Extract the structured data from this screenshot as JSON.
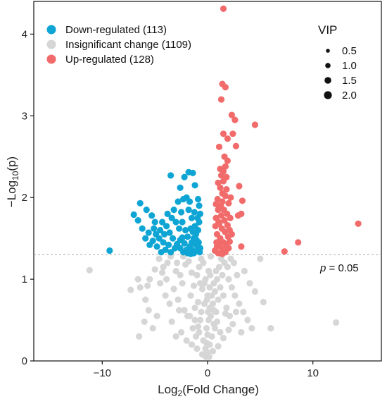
{
  "chart_data": {
    "type": "scatter",
    "xlabel": {
      "pre": "Log",
      "sub": "2",
      "post": "(Fold Change)"
    },
    "ylabel": {
      "pre": "−Log",
      "sub": "10",
      "post": "(p)"
    },
    "xlim": [
      -16.5,
      16.5
    ],
    "ylim": [
      0,
      4.4
    ],
    "xticks": [
      -10,
      0,
      10
    ],
    "yticks": [
      0,
      1,
      2,
      3,
      4
    ],
    "threshold": {
      "y": 1.301,
      "label_italic": "p",
      "label_rest": " = 0.05"
    },
    "legend": {
      "position": "top-left",
      "entries": [
        {
          "label": "Down-regulated (113)",
          "color": "#0ea5d4"
        },
        {
          "label": "Insignificant change (1109)",
          "color": "#d6d6d6"
        },
        {
          "label": "Up-regulated (128)",
          "color": "#f26b6b"
        }
      ]
    },
    "size_legend": {
      "title": "VIP",
      "labels": [
        "0.5",
        "1.0",
        "1.5",
        "2.0"
      ],
      "values": [
        0.5,
        1.0,
        1.5,
        2.0
      ]
    },
    "series": [
      {
        "name": "Down-regulated (113)",
        "color": "#0ea5d4",
        "points": [
          [
            -9.3,
            1.35
          ],
          [
            -6.4,
            1.93
          ],
          [
            -7.0,
            1.79
          ],
          [
            -6.6,
            1.72
          ],
          [
            -5.8,
            1.85
          ],
          [
            -5.3,
            1.78
          ],
          [
            -6.2,
            1.62
          ],
          [
            -5.6,
            1.57
          ],
          [
            -5.9,
            1.5
          ],
          [
            -5.0,
            1.7
          ],
          [
            -4.5,
            1.6
          ],
          [
            -4.2,
            1.45
          ],
          [
            -4.8,
            1.4
          ],
          [
            -3.5,
            2.27
          ],
          [
            -2.6,
            2.12
          ],
          [
            -1.8,
            2.31
          ],
          [
            -1.4,
            2.3
          ],
          [
            -2.2,
            2.25
          ],
          [
            -2.0,
            2.0
          ],
          [
            -1.2,
            2.15
          ],
          [
            -0.9,
            1.98
          ],
          [
            -3.2,
            1.85
          ],
          [
            -2.5,
            1.82
          ],
          [
            -2.8,
            1.95
          ],
          [
            -3.9,
            1.65
          ],
          [
            -3.6,
            1.57
          ],
          [
            -3.3,
            1.5
          ],
          [
            -2.9,
            1.43
          ],
          [
            -2.6,
            1.38
          ],
          [
            -2.3,
            1.33
          ],
          [
            -2.0,
            1.36
          ],
          [
            -1.7,
            1.4
          ],
          [
            -1.5,
            1.45
          ],
          [
            -1.3,
            1.5
          ],
          [
            -1.1,
            1.55
          ],
          [
            -0.9,
            1.6
          ],
          [
            -0.8,
            1.7
          ],
          [
            -0.7,
            1.8
          ],
          [
            -0.8,
            1.9
          ],
          [
            -1.0,
            1.35
          ],
          [
            -1.3,
            1.32
          ],
          [
            -1.6,
            1.31
          ],
          [
            -1.9,
            1.32
          ],
          [
            -2.2,
            1.44
          ],
          [
            -2.4,
            1.51
          ],
          [
            -2.7,
            1.62
          ],
          [
            -3.0,
            1.7
          ],
          [
            -3.4,
            1.75
          ],
          [
            -3.7,
            1.42
          ],
          [
            -4.0,
            1.36
          ],
          [
            -4.4,
            1.33
          ],
          [
            -4.6,
            1.5
          ],
          [
            -4.9,
            1.55
          ],
          [
            -5.2,
            1.47
          ],
          [
            -5.5,
            1.42
          ],
          [
            -1.2,
            1.65
          ],
          [
            -1.5,
            1.75
          ],
          [
            -1.8,
            1.85
          ],
          [
            -2.1,
            1.6
          ],
          [
            -2.4,
            1.7
          ],
          [
            -0.75,
            1.33
          ],
          [
            -0.85,
            1.45
          ],
          [
            -1.05,
            1.48
          ],
          [
            -1.4,
            1.58
          ],
          [
            -1.6,
            1.62
          ],
          [
            -1.9,
            1.52
          ],
          [
            -2.6,
            1.48
          ],
          [
            -3.1,
            1.38
          ],
          [
            -3.5,
            1.33
          ],
          [
            -0.95,
            1.75
          ],
          [
            -1.25,
            1.82
          ],
          [
            -1.7,
            1.95
          ],
          [
            -2.3,
            1.98
          ],
          [
            -4.1,
            1.55
          ],
          [
            -3.8,
            1.8
          ],
          [
            -4.3,
            1.7
          ],
          [
            -5.1,
            1.62
          ],
          [
            -0.7,
            1.38
          ],
          [
            -1.1,
            1.42
          ],
          [
            -1.5,
            1.36
          ]
        ]
      },
      {
        "name": "Up-regulated (128)",
        "color": "#f26b6b",
        "points": [
          [
            1.5,
            4.31
          ],
          [
            1.4,
            3.39
          ],
          [
            1.7,
            3.35
          ],
          [
            1.3,
            3.2
          ],
          [
            2.3,
            3.01
          ],
          [
            2.6,
            2.95
          ],
          [
            4.5,
            2.89
          ],
          [
            1.5,
            2.78
          ],
          [
            2.4,
            2.78
          ],
          [
            1.9,
            2.72
          ],
          [
            2.7,
            2.63
          ],
          [
            1.1,
            2.62
          ],
          [
            1.6,
            2.5
          ],
          [
            1.9,
            2.45
          ],
          [
            1.7,
            2.38
          ],
          [
            1.5,
            2.32
          ],
          [
            1.3,
            2.27
          ],
          [
            1.0,
            2.18
          ],
          [
            1.2,
            2.12
          ],
          [
            1.4,
            2.05
          ],
          [
            1.8,
            2.1
          ],
          [
            2.2,
            2.0
          ],
          [
            3.0,
            2.14
          ],
          [
            3.3,
            1.96
          ],
          [
            3.2,
            1.8
          ],
          [
            2.9,
            1.78
          ],
          [
            14.3,
            1.68
          ],
          [
            8.6,
            1.45
          ],
          [
            7.3,
            1.34
          ],
          [
            3.2,
            1.4
          ],
          [
            0.8,
            1.92
          ],
          [
            1.0,
            1.85
          ],
          [
            1.3,
            1.78
          ],
          [
            1.6,
            1.72
          ],
          [
            1.9,
            1.66
          ],
          [
            2.1,
            1.6
          ],
          [
            0.9,
            1.55
          ],
          [
            1.2,
            1.5
          ],
          [
            1.5,
            1.45
          ],
          [
            1.8,
            1.42
          ],
          [
            2.0,
            1.38
          ],
          [
            0.7,
            1.35
          ],
          [
            1.0,
            1.32
          ],
          [
            1.4,
            1.31
          ],
          [
            1.7,
            1.33
          ],
          [
            2.1,
            1.46
          ],
          [
            2.3,
            1.55
          ],
          [
            0.75,
            1.65
          ],
          [
            1.05,
            1.7
          ],
          [
            1.35,
            1.62
          ],
          [
            1.65,
            1.58
          ],
          [
            1.95,
            1.52
          ],
          [
            0.85,
            1.45
          ],
          [
            1.15,
            1.4
          ],
          [
            1.45,
            1.37
          ],
          [
            0.95,
            1.98
          ],
          [
            1.25,
            1.9
          ],
          [
            1.55,
            1.85
          ],
          [
            1.85,
            1.8
          ],
          [
            2.15,
            1.75
          ],
          [
            0.8,
            1.75
          ],
          [
            1.1,
            1.68
          ],
          [
            1.4,
            1.95
          ],
          [
            1.7,
            2.02
          ],
          [
            2.0,
            1.93
          ],
          [
            1.2,
            2.35
          ],
          [
            1.5,
            2.2
          ],
          [
            1.8,
            2.25
          ],
          [
            0.9,
            1.4
          ],
          [
            1.3,
            1.46
          ]
        ]
      },
      {
        "name": "Insignificant change (1109)",
        "color": "#d6d6d6",
        "points": [
          [
            -11.2,
            1.11
          ],
          [
            -7.3,
            0.87
          ],
          [
            -6.6,
            1.0
          ],
          [
            -6.4,
            0.9
          ],
          [
            -5.7,
            0.92
          ],
          [
            -5.5,
            1.0
          ],
          [
            -5.9,
            0.75
          ],
          [
            -5.6,
            0.62
          ],
          [
            -6.0,
            0.48
          ],
          [
            -4.6,
            1.25
          ],
          [
            -3.8,
            1.2
          ],
          [
            -4.2,
            1.15
          ],
          [
            -3.5,
            1.28
          ],
          [
            -3.0,
            1.1
          ],
          [
            -2.6,
            1.05
          ],
          [
            -4.5,
            0.95
          ],
          [
            -4.0,
            0.8
          ],
          [
            -3.6,
            0.7
          ],
          [
            -3.2,
            0.88
          ],
          [
            -2.8,
            0.75
          ],
          [
            -2.4,
            0.95
          ],
          [
            -2.1,
            1.18
          ],
          [
            -1.8,
            1.22
          ],
          [
            -1.5,
            1.08
          ],
          [
            -2.2,
            0.62
          ],
          [
            -1.9,
            0.55
          ],
          [
            -1.6,
            0.8
          ],
          [
            -1.3,
            0.92
          ],
          [
            -1.0,
            1.05
          ],
          [
            -0.8,
            1.15
          ],
          [
            -0.6,
            1.25
          ],
          [
            -1.2,
            0.65
          ],
          [
            -0.9,
            0.72
          ],
          [
            -0.7,
            0.5
          ],
          [
            -0.5,
            0.88
          ],
          [
            -0.3,
            0.95
          ],
          [
            -1.4,
            0.4
          ],
          [
            -1.1,
            0.3
          ],
          [
            -0.8,
            0.35
          ],
          [
            -0.4,
            0.25
          ],
          [
            -0.2,
            0.15
          ],
          [
            0.0,
            0.1
          ],
          [
            0.2,
            0.2
          ],
          [
            0.4,
            0.3
          ],
          [
            0.6,
            0.45
          ],
          [
            0.8,
            0.6
          ],
          [
            1.0,
            0.75
          ],
          [
            1.2,
            0.9
          ],
          [
            1.4,
            1.05
          ],
          [
            1.6,
            1.2
          ],
          [
            0.3,
            0.55
          ],
          [
            0.5,
            0.7
          ],
          [
            0.7,
            0.85
          ],
          [
            0.9,
            1.0
          ],
          [
            1.1,
            1.15
          ],
          [
            1.3,
            1.25
          ],
          [
            -0.1,
            0.4
          ],
          [
            0.1,
            0.5
          ],
          [
            0.2,
            0.65
          ],
          [
            0.4,
            0.8
          ],
          [
            0.6,
            0.95
          ],
          [
            0.8,
            1.1
          ],
          [
            1.5,
            0.8
          ],
          [
            1.8,
            0.65
          ],
          [
            2.1,
            0.55
          ],
          [
            2.4,
            0.45
          ],
          [
            2.0,
            1.0
          ],
          [
            2.3,
            0.9
          ],
          [
            2.6,
            0.8
          ],
          [
            3.0,
            0.7
          ],
          [
            3.4,
            0.6
          ],
          [
            3.8,
            0.5
          ],
          [
            4.2,
            0.4
          ],
          [
            3.5,
            1.1
          ],
          [
            4.0,
            0.95
          ],
          [
            4.5,
            0.85
          ],
          [
            5.0,
            1.25
          ],
          [
            5.3,
            0.72
          ],
          [
            6.0,
            0.4
          ],
          [
            12.2,
            0.47
          ],
          [
            -2.5,
            0.35
          ],
          [
            -3.0,
            0.3
          ],
          [
            -2.0,
            0.25
          ],
          [
            -1.5,
            0.2
          ],
          [
            -1.0,
            0.15
          ],
          [
            -0.5,
            0.08
          ],
          [
            0.5,
            0.12
          ],
          [
            1.0,
            0.18
          ],
          [
            1.5,
            0.28
          ],
          [
            2.0,
            0.38
          ],
          [
            -0.3,
            0.7
          ],
          [
            0.0,
            0.8
          ],
          [
            0.2,
            0.9
          ],
          [
            -0.2,
            1.0
          ],
          [
            0.1,
            1.1
          ],
          [
            -0.4,
            1.2
          ],
          [
            0.3,
            1.28
          ],
          [
            -0.6,
            0.6
          ],
          [
            0.6,
            0.62
          ],
          [
            -0.9,
            0.42
          ],
          [
            0.9,
            0.48
          ],
          [
            -1.7,
            0.55
          ],
          [
            1.7,
            0.58
          ],
          [
            -2.7,
            0.62
          ],
          [
            2.7,
            0.6
          ],
          [
            -3.4,
            0.48
          ],
          [
            3.2,
            0.35
          ],
          [
            -4.8,
            0.55
          ],
          [
            -5.2,
            0.4
          ],
          [
            -6.5,
            0.3
          ],
          [
            -3.9,
            1.0
          ],
          [
            -4.3,
            1.08
          ],
          [
            -5.0,
            1.12
          ],
          [
            -2.9,
            1.2
          ],
          [
            -2.3,
            1.28
          ],
          [
            2.5,
            1.2
          ],
          [
            2.8,
            1.05
          ],
          [
            1.9,
            1.15
          ],
          [
            2.2,
            1.25
          ],
          [
            1.2,
            0.35
          ],
          [
            -1.2,
            0.5
          ],
          [
            -0.7,
            0.95
          ],
          [
            0.7,
            0.4
          ],
          [
            -0.1,
            0.22
          ],
          [
            0.0,
            0.32
          ],
          [
            0.15,
            0.05
          ],
          [
            -0.15,
            0.05
          ],
          [
            0.05,
            0.6
          ],
          [
            -0.05,
            0.75
          ],
          [
            0.25,
            1.05
          ]
        ]
      }
    ]
  }
}
